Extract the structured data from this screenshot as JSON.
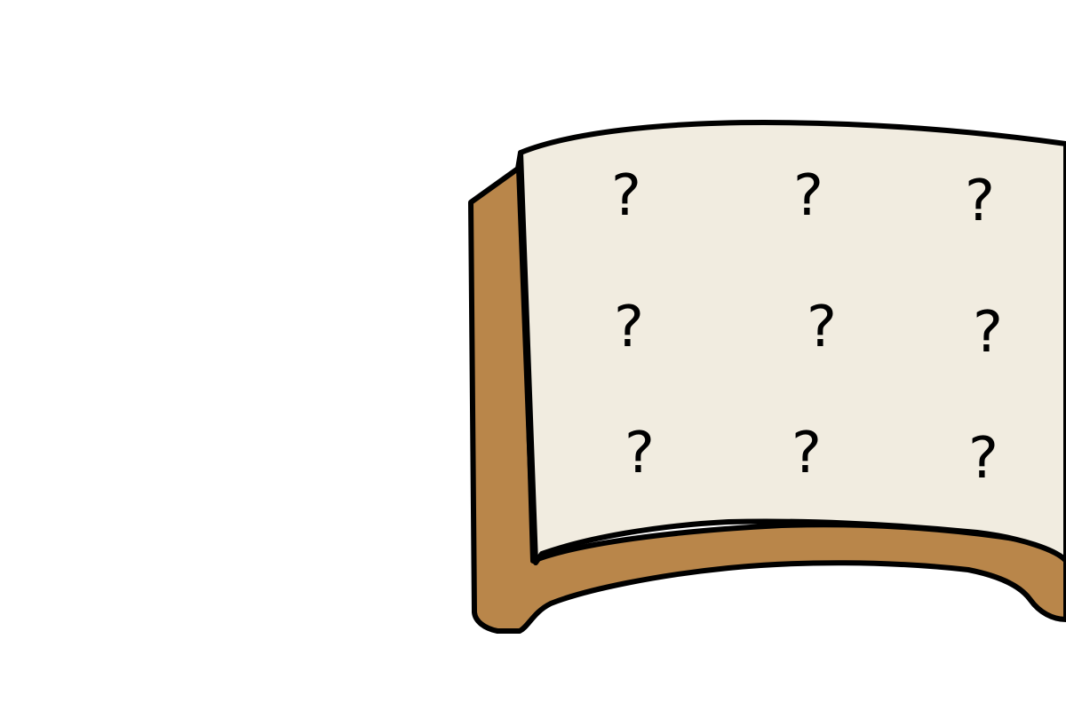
{
  "illustration": {
    "marks": {
      "symbol": "?",
      "rows": 3,
      "columns": 3
    },
    "colors": {
      "cover": "#b9864a",
      "page": "#f1ece0",
      "outline": "#000000",
      "background": "#ffffff"
    }
  }
}
